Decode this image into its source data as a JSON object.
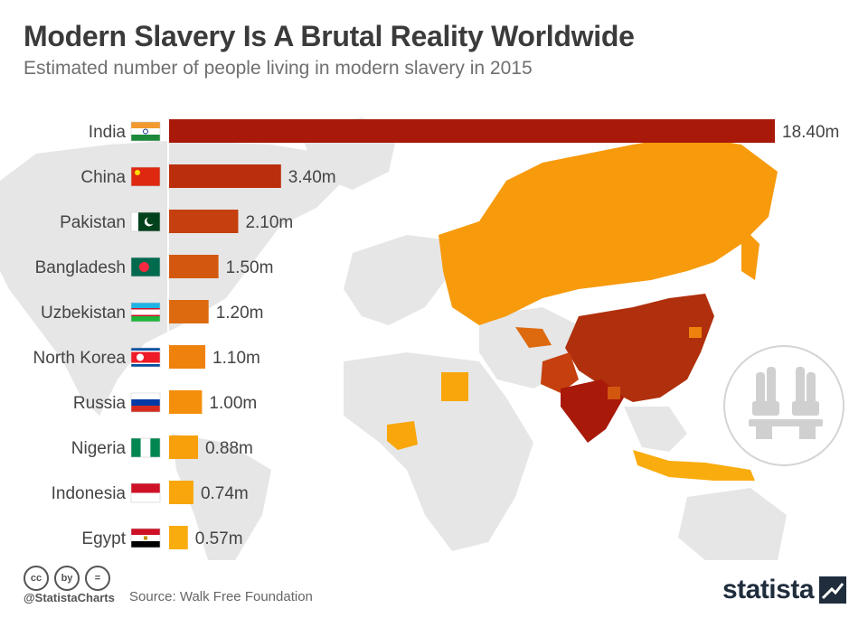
{
  "header": {
    "title": "Modern Slavery Is A Brutal Reality Worldwide",
    "subtitle": "Estimated number of people living in modern slavery in 2015"
  },
  "footer": {
    "handle": "@StatistaCharts",
    "source": "Source: Walk Free Foundation",
    "brand": "statista",
    "cc_icons": [
      "cc",
      "by",
      "="
    ]
  },
  "colors": {
    "bar_scale": [
      "#a8190a",
      "#bb2e0c",
      "#c5400e",
      "#d4570f",
      "#dd6a0e",
      "#ee820c",
      "#f48f0b",
      "#f7a00b",
      "#f8a60b",
      "#f9ac0d"
    ],
    "map_land": "#e3e3e3",
    "map_orange": "#f79a0c",
    "map_dark": "#b0300d"
  },
  "chart_data": {
    "type": "bar",
    "orientation": "horizontal",
    "categories": [
      "India",
      "China",
      "Pakistan",
      "Bangladesh",
      "Uzbekistan",
      "North Korea",
      "Russia",
      "Nigeria",
      "Indonesia",
      "Egypt"
    ],
    "values": [
      18.4,
      3.4,
      2.1,
      1.5,
      1.2,
      1.1,
      1.0,
      0.88,
      0.74,
      0.57
    ],
    "value_labels": [
      "18.40m",
      "3.40m",
      "2.10m",
      "1.50m",
      "1.20m",
      "1.10m",
      "1.00m",
      "0.88m",
      "0.74m",
      "0.57m"
    ],
    "flags": [
      "india-flag",
      "china-flag",
      "pakistan-flag",
      "bangladesh-flag",
      "uzbekistan-flag",
      "north-korea-flag",
      "russia-flag",
      "nigeria-flag",
      "indonesia-flag",
      "egypt-flag"
    ],
    "xlim": [
      0,
      18.4
    ],
    "grid": false
  }
}
